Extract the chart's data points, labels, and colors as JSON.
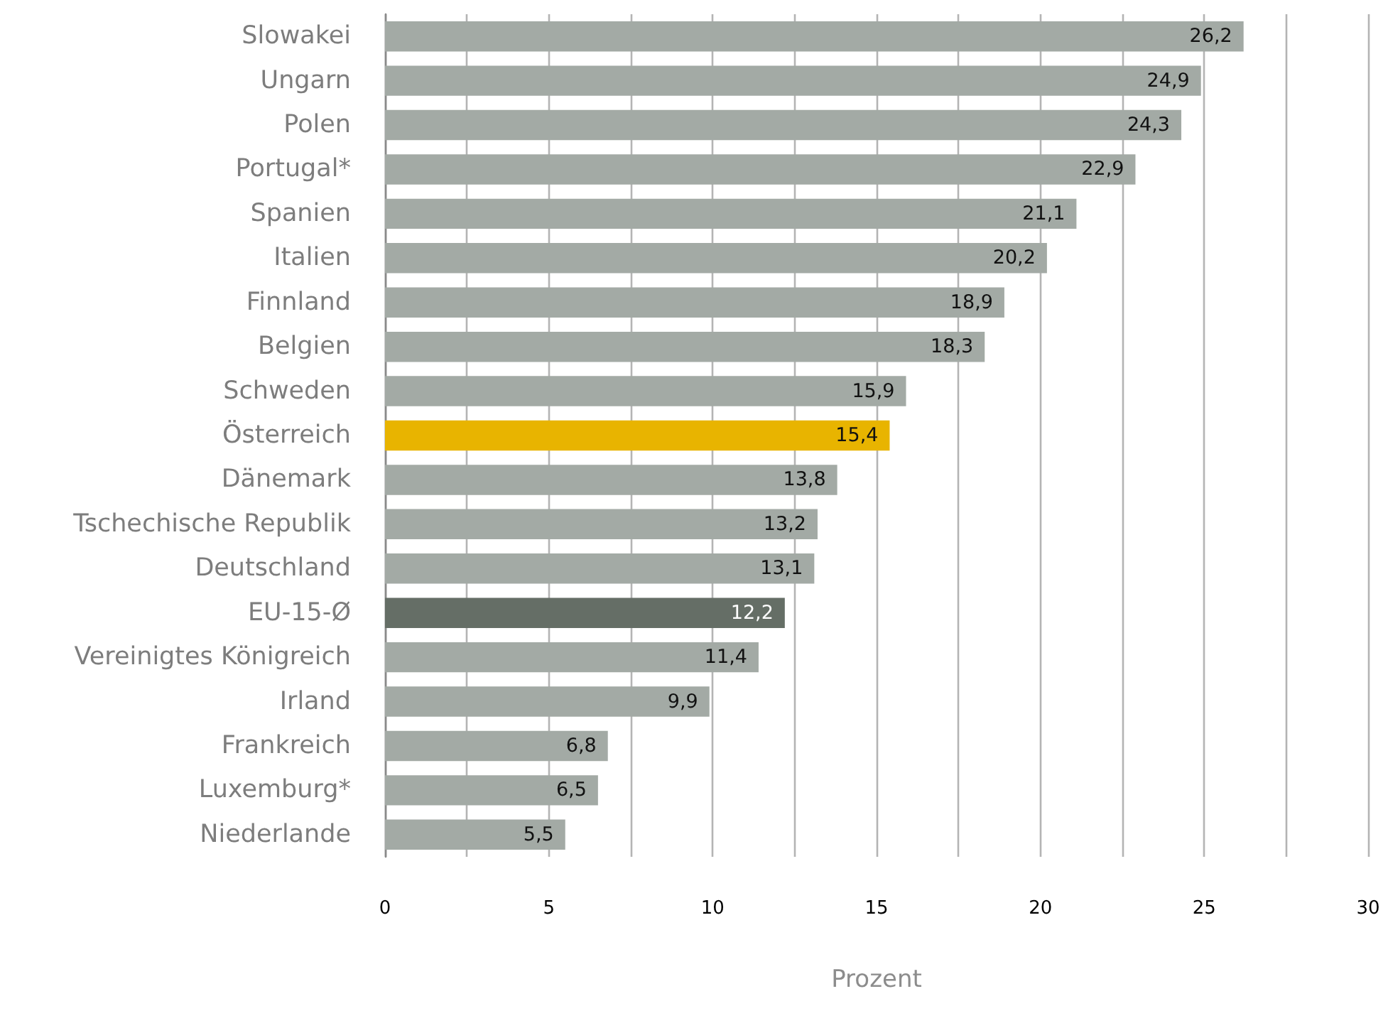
{
  "chart_data": {
    "type": "bar",
    "orientation": "horizontal",
    "categories": [
      "Slowakei",
      "Ungarn",
      "Polen",
      "Portugal*",
      "Spanien",
      "Italien",
      "Finnland",
      "Belgien",
      "Schweden",
      "Österreich",
      "Dänemark",
      "Tschechische Republik",
      "Deutschland",
      "EU-15-Ø",
      "Vereinigtes Königreich",
      "Irland",
      "Frankreich",
      "Luxemburg*",
      "Niederlande"
    ],
    "values": [
      26.2,
      24.9,
      24.3,
      22.9,
      21.1,
      20.2,
      18.9,
      18.3,
      15.9,
      15.4,
      13.8,
      13.2,
      13.1,
      12.2,
      11.4,
      9.9,
      6.8,
      6.5,
      5.5
    ],
    "value_labels": [
      "26,2",
      "24,9",
      "24,3",
      "22,9",
      "21,1",
      "20,2",
      "18,9",
      "18,3",
      "15,9",
      "15,4",
      "13,8",
      "13,2",
      "13,1",
      "12,2",
      "11,4",
      "9,9",
      "6,8",
      "6,5",
      "5,5"
    ],
    "colors": [
      "#a3aaa5",
      "#a3aaa5",
      "#a3aaa5",
      "#a3aaa5",
      "#a3aaa5",
      "#a3aaa5",
      "#a3aaa5",
      "#a3aaa5",
      "#a3aaa5",
      "#e8b400",
      "#a3aaa5",
      "#a3aaa5",
      "#a3aaa5",
      "#656e66",
      "#a3aaa5",
      "#a3aaa5",
      "#a3aaa5",
      "#a3aaa5",
      "#a3aaa5"
    ],
    "xlabel": "Prozent",
    "xlim": [
      0,
      30
    ],
    "xticks": [
      0,
      {
        "value": 2.5,
        "label": null
      },
      5,
      {
        "value": 7.5,
        "label": null
      },
      10,
      {
        "value": 12.5,
        "label": null
      },
      15,
      {
        "value": 17.5,
        "label": null
      },
      20,
      {
        "value": 22.5,
        "label": null
      },
      25,
      {
        "value": 27.5,
        "label": null
      },
      30
    ],
    "grid": "x"
  }
}
